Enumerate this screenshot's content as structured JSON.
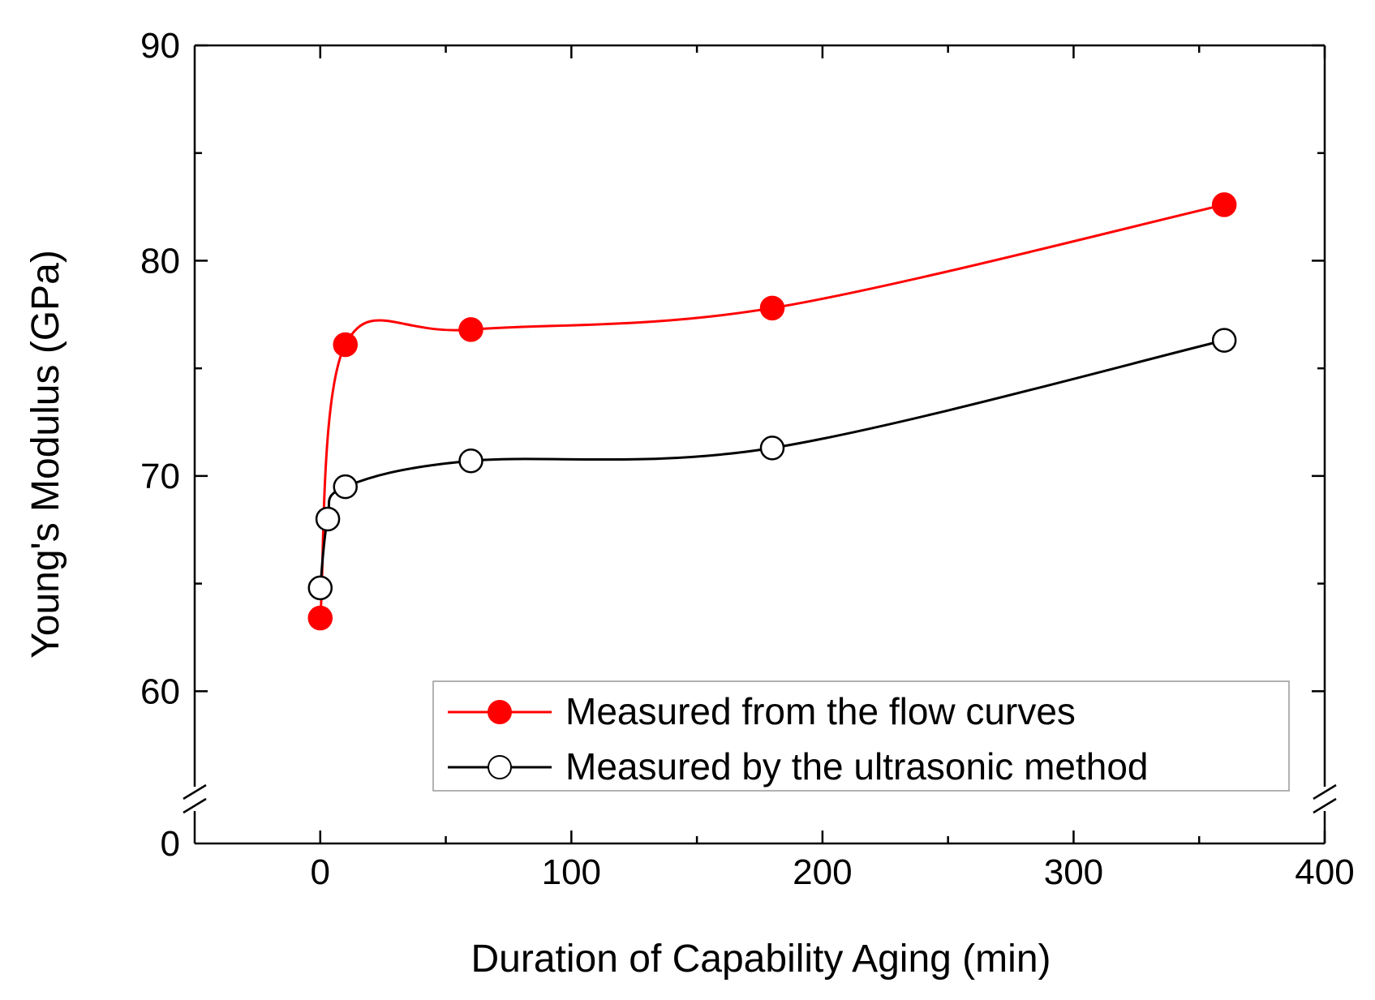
{
  "chart_data": {
    "type": "line",
    "xlabel": "Duration of Capability Aging (min)",
    "ylabel": "Young's Modulus (GPa)",
    "xlim": [
      -50,
      400
    ],
    "ylim_broken": {
      "lower_label": 0,
      "upper_range": [
        55,
        90
      ]
    },
    "xticks": [
      0,
      100,
      200,
      300,
      400
    ],
    "yticks": [
      0,
      60,
      70,
      80,
      90
    ],
    "series": [
      {
        "name": "Measured from the flow curves",
        "color": "#ff0000",
        "marker": "filled-circle",
        "x": [
          0,
          10,
          60,
          180,
          360
        ],
        "y": [
          63.4,
          76.1,
          76.8,
          77.8,
          82.6
        ]
      },
      {
        "name": "Measured by the ultrasonic method",
        "color": "#000000",
        "marker": "open-circle",
        "x": [
          0,
          3,
          10,
          60,
          180,
          360
        ],
        "y": [
          64.8,
          68.0,
          69.5,
          70.7,
          71.3,
          76.3
        ]
      }
    ],
    "legend_position": "bottom-right"
  }
}
